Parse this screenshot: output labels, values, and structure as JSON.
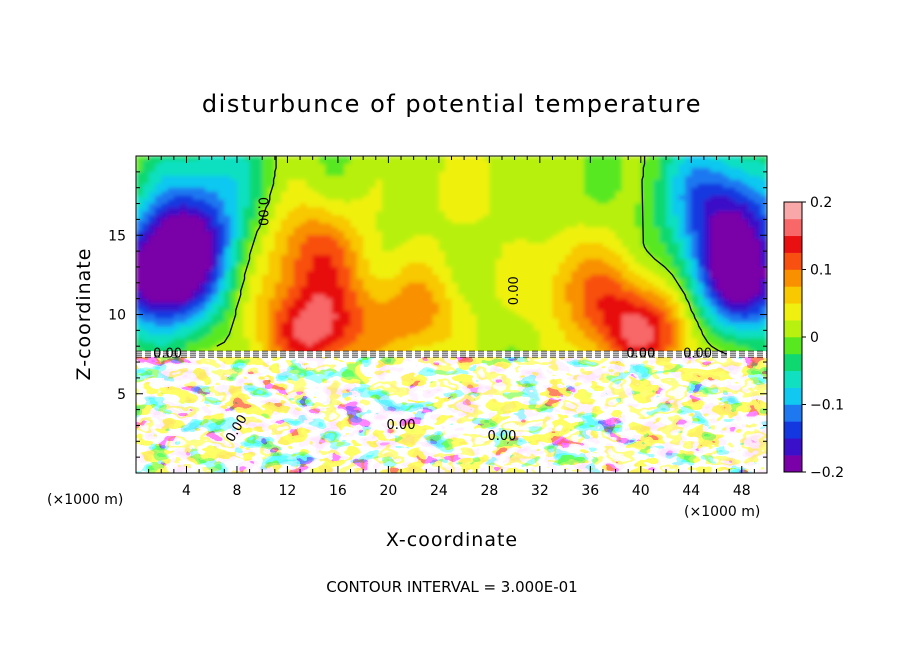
{
  "chart_data": {
    "type": "heatmap",
    "title": "disturbunce of potential temperature",
    "xlabel": "X-coordinate",
    "ylabel": "Z-coordinate",
    "x_unit_label": "(×1000 m)",
    "x_unit_label_bottom": "(×1000 m)",
    "footer": "CONTOUR INTERVAL = 3.000E-01",
    "xlim": [
      0,
      50
    ],
    "ylim": [
      0,
      20
    ],
    "x_ticks": [
      4,
      8,
      12,
      16,
      20,
      24,
      28,
      32,
      36,
      40,
      44,
      48
    ],
    "y_ticks": [
      5,
      10,
      15
    ],
    "colorbar": {
      "min": -0.2,
      "max": 0.2,
      "tick_values": [
        0.2,
        0.1,
        0,
        -0.1,
        -0.2
      ],
      "tick_labels": [
        "0.2",
        "0.1",
        "0",
        "−0.1",
        "−0.2"
      ],
      "palette": [
        "#7a00a8",
        "#3a10c8",
        "#1438e0",
        "#1e78f0",
        "#10c8f0",
        "#10e0c0",
        "#10d870",
        "#58e820",
        "#b8f010",
        "#f0f010",
        "#f8c800",
        "#f89000",
        "#f85010",
        "#e81010",
        "#f86868",
        "#f8a8a8"
      ]
    },
    "contour_labels": [
      "0.00",
      "0.00",
      "0.00",
      "0.00",
      "0.00",
      "0.00",
      "0.00",
      "0.00"
    ],
    "field_upper_layer": {
      "z_range": [
        7.5,
        20
      ],
      "description_values": "potential temperature disturbance, approx. −0.2 at far left/right (x≈0–4, x≈46–50, z≈10–15), up to ≈0.15 near x≈14 and x≈40 at z≈8–10",
      "blobs": [
        {
          "x": 2,
          "z": 12,
          "v": -0.2
        },
        {
          "x": 4,
          "z": 15,
          "v": -0.16
        },
        {
          "x": 48,
          "z": 12,
          "v": -0.2
        },
        {
          "x": 47,
          "z": 16,
          "v": -0.14
        },
        {
          "x": 14,
          "z": 9,
          "v": 0.15
        },
        {
          "x": 14,
          "z": 14,
          "v": 0.1
        },
        {
          "x": 40,
          "z": 9,
          "v": 0.15
        },
        {
          "x": 22,
          "z": 10,
          "v": 0.08
        },
        {
          "x": 35,
          "z": 12,
          "v": 0.07
        },
        {
          "x": 26,
          "z": 18,
          "v": 0.03
        },
        {
          "x": 6,
          "z": 19,
          "v": -0.06
        },
        {
          "x": 45,
          "z": 19,
          "v": -0.06
        }
      ]
    },
    "field_lower_layer": {
      "z_range": [
        0,
        7.5
      ],
      "description_values": "strong turbulent layer, values saturating beyond ±0.2 (white = out of range)"
    }
  }
}
